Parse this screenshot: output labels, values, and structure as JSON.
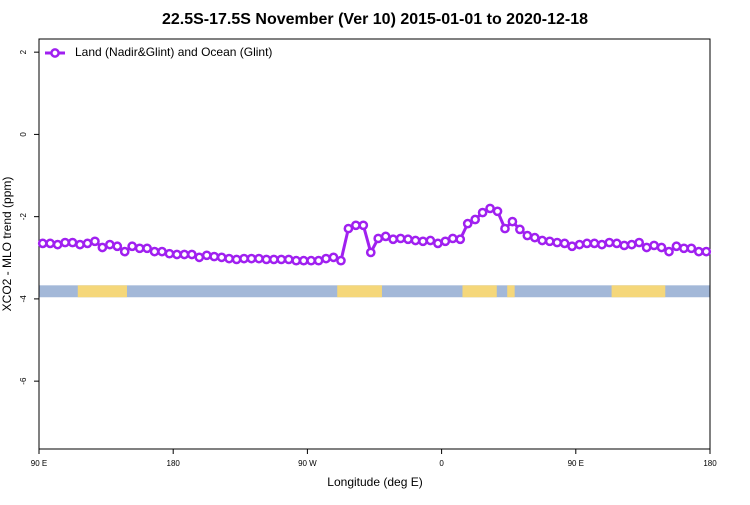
{
  "chart_data": {
    "type": "line",
    "title": "22.5S-17.5S November (Ver 10)   2015-01-01 to 2020-12-18",
    "x_label": "Longitude (deg E)",
    "y_label": "XCO2 - MLO trend (ppm)",
    "xlim": [
      90,
      540
    ],
    "ylim": [
      -7.65,
      2.32
    ],
    "xticks": [
      {
        "value": 90,
        "label": "90 E"
      },
      180,
      {
        "value": 270,
        "label": "90 W"
      },
      {
        "value": 360,
        "label": "0"
      },
      {
        "value": 450,
        "label": "90 E"
      },
      {
        "value": 540,
        "label": "180"
      }
    ],
    "yticks": [
      2,
      0,
      -2,
      -4,
      -6
    ],
    "legend": "top-left",
    "x": [
      92.5,
      97.5,
      102.5,
      107.5,
      112.5,
      117.5,
      122.5,
      127.5,
      132.5,
      137.5,
      142.5,
      147.5,
      152.5,
      157.5,
      162.5,
      167.5,
      172.5,
      177.5,
      182.5,
      187.5,
      192.5,
      197.5,
      202.5,
      207.5,
      212.5,
      217.5,
      222.5,
      227.5,
      232.5,
      237.5,
      242.5,
      247.5,
      252.5,
      257.5,
      262.5,
      267.5,
      272.5,
      277.5,
      282.5,
      287.5,
      292.5,
      297.5,
      302.5,
      307.5,
      312.5,
      317.5,
      322.5,
      327.5,
      332.5,
      337.5,
      342.5,
      347.5,
      352.5,
      357.5,
      362.5,
      367.5,
      372.5,
      377.5,
      382.5,
      387.5,
      392.5,
      397.5,
      402.5,
      407.5,
      412.5,
      417.5,
      422.5,
      427.5,
      432.5,
      437.5,
      442.5,
      447.5,
      452.5,
      457.5,
      462.5,
      467.5,
      472.5,
      477.5,
      482.5,
      487.5,
      492.5,
      497.5,
      502.5,
      507.5,
      512.5,
      517.5,
      522.5,
      527.5,
      532.5,
      537.5
    ],
    "series": [
      {
        "name": "Land (Nadir&Glint) and Ocean (Glint)",
        "color": "#a020f0",
        "values": [
          -2.65,
          -2.65,
          -2.68,
          -2.63,
          -2.63,
          -2.68,
          -2.65,
          -2.6,
          -2.75,
          -2.68,
          -2.72,
          -2.85,
          -2.72,
          -2.77,
          -2.77,
          -2.85,
          -2.85,
          -2.9,
          -2.92,
          -2.92,
          -2.92,
          -2.99,
          -2.94,
          -2.97,
          -2.99,
          -3.02,
          -3.04,
          -3.02,
          -3.02,
          -3.02,
          -3.04,
          -3.04,
          -3.04,
          -3.04,
          -3.07,
          -3.07,
          -3.07,
          -3.07,
          -3.02,
          -2.99,
          -3.07,
          -2.29,
          -2.21,
          -2.21,
          -2.87,
          -2.53,
          -2.48,
          -2.55,
          -2.53,
          -2.55,
          -2.58,
          -2.6,
          -2.58,
          -2.65,
          -2.6,
          -2.53,
          -2.55,
          -2.17,
          -2.07,
          -1.9,
          -1.8,
          -1.87,
          -2.29,
          -2.12,
          -2.31,
          -2.46,
          -2.51,
          -2.58,
          -2.6,
          -2.63,
          -2.65,
          -2.72,
          -2.68,
          -2.65,
          -2.65,
          -2.68,
          -2.63,
          -2.65,
          -2.7,
          -2.68,
          -2.63,
          -2.75,
          -2.7,
          -2.75,
          -2.85,
          -2.72,
          -2.77,
          -2.77,
          -2.85,
          -2.85
        ]
      }
    ],
    "surface_strip": {
      "ylim": [
        -3.96,
        -3.67
      ],
      "ocean_color": "#a3b8d8",
      "land_color": "#f5d77a",
      "land": [
        [
          116,
          149
        ],
        [
          290,
          320
        ],
        [
          374,
          397
        ],
        [
          404,
          409
        ],
        [
          474,
          510
        ]
      ]
    }
  }
}
